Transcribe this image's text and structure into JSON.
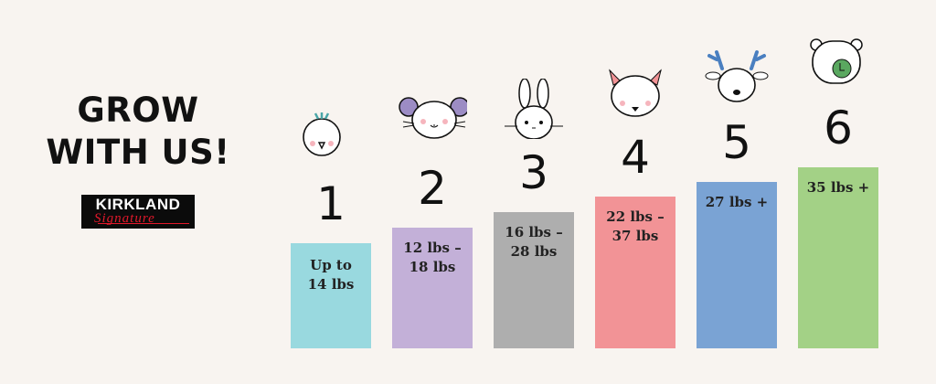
{
  "headline": {
    "line1": "GROW",
    "line2": "WITH US!"
  },
  "logo": {
    "brand": "KIRKLAND",
    "sub": "Signature"
  },
  "steps": [
    {
      "number": "1",
      "animal": "bird-icon",
      "range": "Up to 14 lbs",
      "line1": "Up to",
      "line2": "14 lbs",
      "color": "#99d9df"
    },
    {
      "number": "2",
      "animal": "mouse-icon",
      "range": "12 lbs – 18 lbs",
      "line1": "12 lbs –",
      "line2": "18 lbs",
      "color": "#c3b0d8"
    },
    {
      "number": "3",
      "animal": "bunny-icon",
      "range": "16 lbs – 28 lbs",
      "line1": "16 lbs –",
      "line2": "28 lbs",
      "color": "#aeaeae"
    },
    {
      "number": "4",
      "animal": "fox-icon",
      "range": "22 lbs – 37 lbs",
      "line1": "22 lbs –",
      "line2": "37 lbs",
      "color": "#f29396"
    },
    {
      "number": "5",
      "animal": "deer-icon",
      "range": "27 lbs +",
      "line1": "27 lbs +",
      "line2": "",
      "color": "#7aa3d4"
    },
    {
      "number": "6",
      "animal": "bear-icon",
      "range": "35 lbs +",
      "line1": "35 lbs +",
      "line2": "",
      "color": "#a3d186"
    }
  ]
}
